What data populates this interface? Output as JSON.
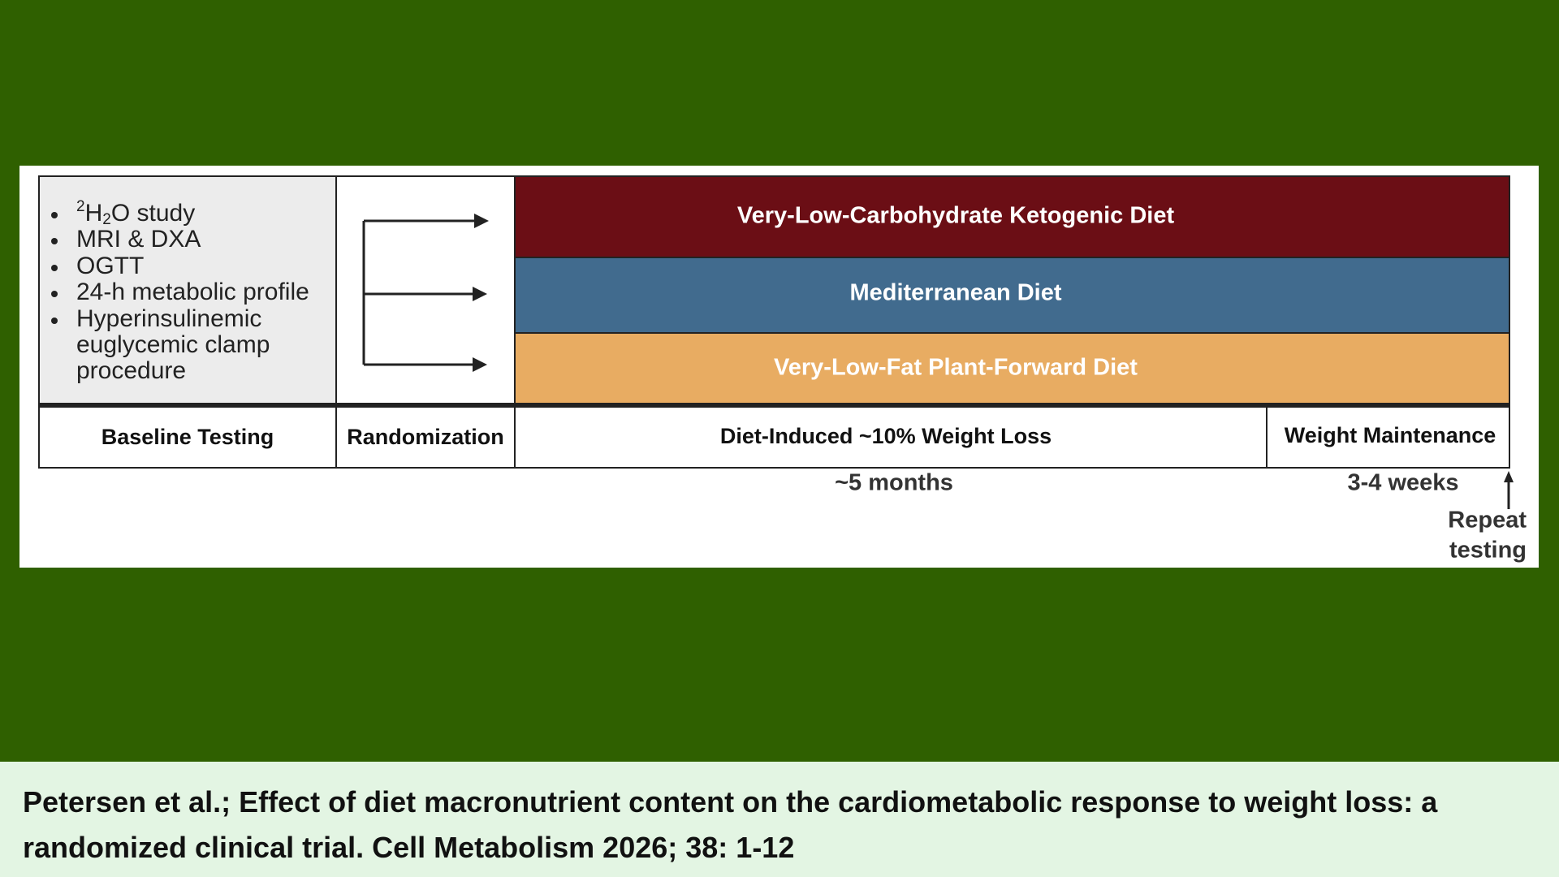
{
  "baseline_items": [
    {
      "sup": "2",
      "pre": "H",
      "sub": "2",
      "post": "O study"
    },
    "MRI & DXA",
    "OGTT",
    "24-h metabolic profile",
    "Hyperinsulinemic",
    "euglycemic clamp",
    "procedure"
  ],
  "diets": [
    "Very-Low-Carbohydrate Ketogenic Diet",
    "Mediterranean Diet",
    "Very-Low-Fat Plant-Forward Diet"
  ],
  "phases": [
    "Baseline Testing",
    "Randomization",
    "Diet-Induced ~10% Weight Loss",
    "Weight Maintenance"
  ],
  "durations": [
    "~5 months",
    "3-4 weeks"
  ],
  "repeat": [
    "Repeat",
    "testing"
  ],
  "caption": "Petersen et al.; Effect of diet macronutrient content on the cardiometabolic response to weight loss: a randomized clinical trial. Cell Metabolism 2026; 38: 1-12"
}
